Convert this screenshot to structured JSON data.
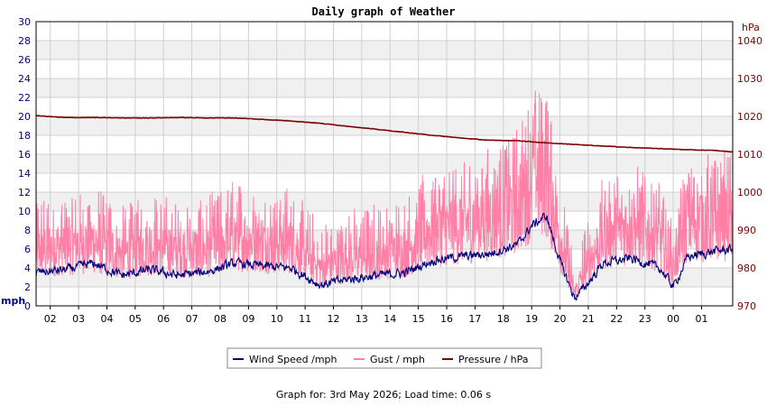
{
  "chart_data": {
    "type": "line",
    "title": "Daily graph of Weather",
    "y_left": {
      "label": "mph",
      "min": 0,
      "max": 30,
      "ticks": [
        0,
        2,
        4,
        6,
        8,
        10,
        12,
        14,
        16,
        18,
        20,
        22,
        24,
        26,
        28,
        30
      ]
    },
    "y_right": {
      "label": "hPa",
      "min": 970,
      "max": 1045,
      "ticks": [
        970,
        980,
        990,
        1000,
        1010,
        1020,
        1030,
        1040
      ]
    },
    "x": {
      "min": 0,
      "max": 24.6,
      "tick_labels": [
        "02",
        "03",
        "04",
        "05",
        "06",
        "07",
        "08",
        "09",
        "10",
        "11",
        "12",
        "13",
        "14",
        "15",
        "16",
        "17",
        "18",
        "19",
        "20",
        "21",
        "22",
        "23",
        "00",
        "01"
      ]
    },
    "grid": true,
    "legend_placement": "bottom-center",
    "series": [
      {
        "name": "Wind Speed /mph",
        "axis": "left",
        "color": "#00007f",
        "x": [
          0,
          1,
          2,
          3,
          4,
          5,
          6,
          7,
          8,
          9,
          10,
          11,
          12,
          13,
          14,
          15,
          16,
          17,
          17.5,
          18,
          18.5,
          19,
          19.5,
          20,
          21,
          22,
          22.5,
          23,
          24,
          24.6
        ],
        "y": [
          3.5,
          3.8,
          4.5,
          3.2,
          3.8,
          3.2,
          3.6,
          4.5,
          4.2,
          4.0,
          2.2,
          2.8,
          3.2,
          3.5,
          4.8,
          5.2,
          5.5,
          6.5,
          8.5,
          9.5,
          4.5,
          0.8,
          2.5,
          4.5,
          5.0,
          4.0,
          2.0,
          5.2,
          5.8,
          6.0
        ]
      },
      {
        "name": "Gust / mph",
        "axis": "left",
        "color": "#ff7fa7",
        "x": [
          0,
          1,
          2,
          3,
          4,
          5,
          6,
          7,
          8,
          9,
          10,
          11,
          12,
          13,
          14,
          15,
          16,
          17,
          17.5,
          18,
          18.5,
          19,
          19.5,
          20,
          21,
          22,
          22.5,
          23,
          24,
          24.6
        ],
        "y": [
          6.5,
          7.0,
          7.5,
          6.0,
          7.0,
          6.5,
          6.5,
          8.0,
          7.5,
          7.5,
          4.5,
          5.5,
          6.0,
          6.5,
          9.0,
          9.5,
          10.5,
          12.0,
          15.0,
          16.0,
          8.0,
          1.5,
          5.0,
          8.0,
          9.5,
          8.0,
          4.5,
          10.0,
          10.0,
          10.5
        ]
      },
      {
        "name": "Pressure / hPa",
        "axis": "right",
        "color": "#7f0000",
        "x": [
          0,
          1,
          2,
          3,
          4,
          5,
          6,
          7,
          8,
          9,
          10,
          11,
          12,
          13,
          14,
          15,
          16,
          17,
          18,
          19,
          20,
          21,
          22,
          23,
          24,
          24.6
        ],
        "y": [
          1020.2,
          1019.7,
          1019.7,
          1019.6,
          1019.6,
          1019.7,
          1019.6,
          1019.6,
          1019.2,
          1018.8,
          1018.2,
          1017.4,
          1016.6,
          1015.8,
          1015.0,
          1014.3,
          1013.7,
          1013.6,
          1013.0,
          1012.6,
          1012.2,
          1011.8,
          1011.5,
          1011.2,
          1011.0,
          1010.6
        ]
      }
    ]
  },
  "legend": {
    "items": [
      {
        "name": "Wind Speed /mph",
        "color": "#00007f"
      },
      {
        "name": "Gust / mph",
        "color": "#ff7fa7"
      },
      {
        "name": "Pressure / hPa",
        "color": "#7f0000"
      }
    ]
  },
  "footer": {
    "text": "Graph for: 3rd May 2026; Load time: 0.06 s"
  }
}
